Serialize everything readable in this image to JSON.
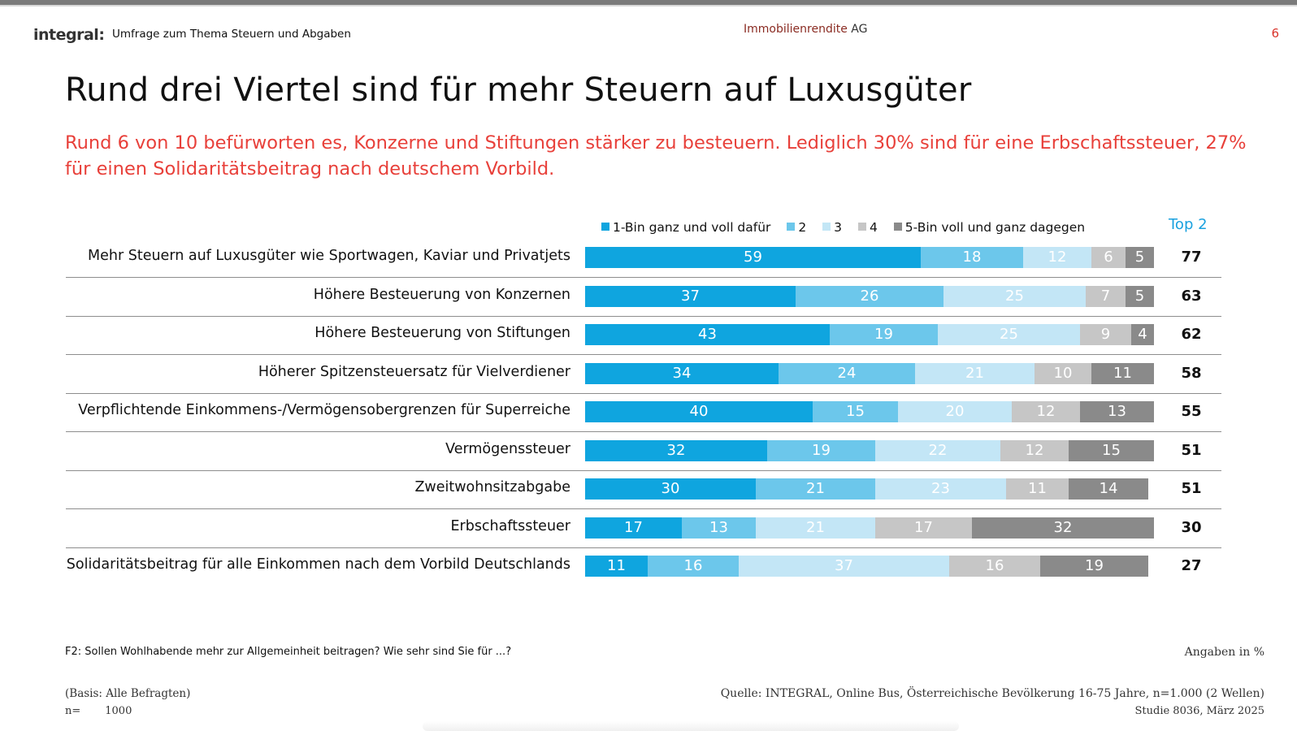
{
  "header": {
    "logo": "integral:",
    "survey_title": "Umfrage zum Thema Steuern und Abgaben",
    "client_name": "Immobilienrendite",
    "client_suffix": "AG",
    "page_number": "6"
  },
  "title": "Rund drei Viertel sind für mehr Steuern auf Luxusgüter",
  "subtitle": "Rund 6 von 10 befürworten es, Konzerne und Stiftungen stärker zu besteuern. Lediglich 30% sind für eine Erbschaftssteuer, 27% für einen Solidaritätsbeitrag nach deutschem Vorbild.",
  "colors": {
    "c1": "#0fa5df",
    "c2": "#6cc7eb",
    "c3": "#c3e6f6",
    "c4": "#c6c6c6",
    "c5": "#8a8a8a",
    "subtitle": "#e8403a",
    "top2": "#1aa1df"
  },
  "chart_data": {
    "type": "bar",
    "orientation": "horizontal",
    "stacked": true,
    "legend": [
      "1-Bin ganz und voll dafür",
      "2",
      "3",
      "4",
      "5-Bin voll und ganz  dagegen"
    ],
    "legend_placement": "top",
    "top2_header": "Top 2",
    "categories": [
      "Mehr Steuern auf Luxusgüter wie Sportwagen, Kaviar und Privatjets",
      "Höhere Besteuerung von Konzernen",
      "Höhere Besteuerung von Stiftungen",
      "Höherer Spitzensteuersatz für Vielverdiener",
      "Verpflichtende Einkommens-/Vermögensobergrenzen für Superreiche",
      "Vermögenssteuer",
      "Zweitwohnsitzabgabe",
      "Erbschaftssteuer",
      "Solidaritätsbeitrag für alle Einkommen nach dem Vorbild Deutschlands"
    ],
    "series": [
      {
        "name": "1-Bin ganz und voll dafür",
        "values": [
          59,
          37,
          43,
          34,
          40,
          32,
          30,
          17,
          11
        ]
      },
      {
        "name": "2",
        "values": [
          18,
          26,
          19,
          24,
          15,
          19,
          21,
          13,
          16
        ]
      },
      {
        "name": "3",
        "values": [
          12,
          25,
          25,
          21,
          20,
          22,
          23,
          21,
          37
        ]
      },
      {
        "name": "4",
        "values": [
          6,
          7,
          9,
          10,
          12,
          12,
          11,
          17,
          16
        ]
      },
      {
        "name": "5-Bin voll und ganz  dagegen",
        "values": [
          5,
          5,
          4,
          11,
          13,
          15,
          14,
          32,
          19
        ]
      }
    ],
    "top2": [
      77,
      63,
      62,
      58,
      55,
      51,
      51,
      30,
      27
    ],
    "xlim": [
      0,
      100
    ],
    "unit": "%"
  },
  "footer": {
    "question": "F2: Sollen Wohlhabende mehr zur Allgemeinheit beitragen? Wie sehr sind Sie für ...?",
    "unit_note": "Angaben in %",
    "basis": "(Basis: Alle Befragten)",
    "n_label": "n=",
    "n_value": "1000",
    "source": "Quelle: INTEGRAL, Online Bus,  Österreichische Bevölkerung 16-75 Jahre, n=1.000 (2 Wellen)",
    "study": "Studie 8036, März 2025"
  }
}
